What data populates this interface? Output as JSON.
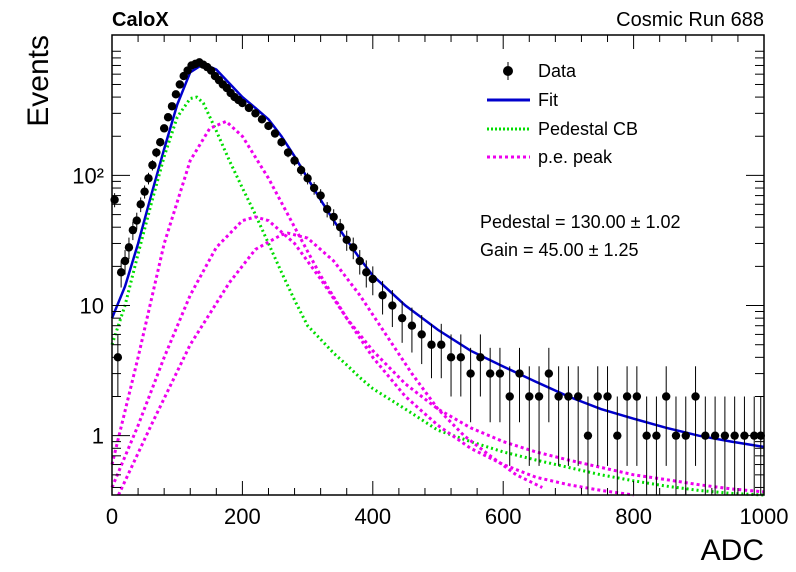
{
  "header": {
    "left_label": "CaloX",
    "right_label": "Cosmic Run 688"
  },
  "stats": {
    "pedestal": "Pedestal = 130.00 ± 1.02",
    "gain": "Gain = 45.00 ± 1.25"
  },
  "colors": {
    "data": "#000000",
    "fit": "#0000cc",
    "pedestal": "#00dd00",
    "pe_peak": "#ee00ee"
  },
  "chart_data": {
    "type": "scatter",
    "xlabel": "ADC",
    "ylabel": "Events",
    "xlim": [
      0,
      1000
    ],
    "ylim": [
      0.35,
      1200
    ],
    "yscale": "log",
    "grid": false,
    "legend_position": "top-right",
    "x_ticks": [
      0,
      200,
      400,
      600,
      800,
      1000
    ],
    "x_tick_labels": [
      "0",
      "200",
      "400",
      "600",
      "800",
      "1000"
    ],
    "y_ticks": [
      1,
      10,
      100
    ],
    "y_tick_labels": [
      "1",
      "10",
      "10²"
    ],
    "legend": [
      "Data",
      "Fit",
      "Pedestal CB",
      "p.e. peak"
    ],
    "series": [
      {
        "name": "Data",
        "style": "points-with-errors",
        "x": [
          4,
          9,
          14,
          20,
          26,
          32,
          38,
          44,
          50,
          56,
          62,
          68,
          74,
          80,
          86,
          92,
          98,
          104,
          110,
          116,
          122,
          128,
          134,
          140,
          146,
          152,
          158,
          164,
          170,
          176,
          182,
          188,
          194,
          200,
          210,
          220,
          230,
          240,
          250,
          260,
          270,
          280,
          290,
          300,
          310,
          320,
          330,
          340,
          350,
          360,
          370,
          380,
          390,
          400,
          415,
          430,
          445,
          460,
          475,
          490,
          505,
          520,
          535,
          550,
          565,
          580,
          595,
          610,
          625,
          640,
          655,
          670,
          685,
          700,
          715,
          730,
          745,
          760,
          775,
          790,
          805,
          820,
          835,
          850,
          865,
          880,
          895,
          910,
          925,
          940,
          955,
          970,
          985,
          995
        ],
        "y": [
          65,
          4,
          18,
          22,
          28,
          38,
          45,
          60,
          75,
          95,
          120,
          150,
          180,
          230,
          280,
          340,
          420,
          500,
          580,
          640,
          700,
          720,
          740,
          710,
          680,
          640,
          580,
          540,
          500,
          470,
          430,
          400,
          380,
          360,
          330,
          300,
          270,
          240,
          210,
          180,
          150,
          130,
          110,
          95,
          80,
          70,
          55,
          48,
          40,
          32,
          28,
          22,
          18,
          16,
          12,
          10,
          8,
          7,
          6,
          5,
          5,
          4,
          4,
          3,
          4,
          3,
          3,
          2,
          3,
          2,
          2,
          3,
          2,
          2,
          2,
          1,
          2,
          2,
          1,
          2,
          2,
          1,
          1,
          2,
          1,
          1,
          2,
          1,
          1,
          1,
          1,
          1,
          1,
          1
        ]
      },
      {
        "name": "Fit",
        "style": "solid",
        "x": [
          0,
          20,
          40,
          60,
          80,
          100,
          120,
          140,
          160,
          180,
          200,
          220,
          240,
          260,
          280,
          300,
          320,
          340,
          360,
          380,
          400,
          450,
          500,
          550,
          600,
          650,
          700,
          750,
          800,
          850,
          900,
          950,
          1000
        ],
        "y": [
          8,
          14,
          30,
          70,
          160,
          350,
          620,
          720,
          650,
          510,
          400,
          330,
          270,
          200,
          140,
          95,
          65,
          45,
          32,
          23,
          17,
          10,
          6.5,
          4.5,
          3.4,
          2.6,
          2.0,
          1.6,
          1.35,
          1.15,
          1.0,
          0.9,
          0.82
        ]
      },
      {
        "name": "Pedestal CB",
        "style": "dotted",
        "x": [
          0,
          20,
          40,
          60,
          80,
          100,
          120,
          130,
          140,
          160,
          180,
          200,
          220,
          240,
          260,
          280,
          300,
          320,
          340,
          360,
          380,
          400,
          450,
          500,
          550,
          600,
          650,
          700,
          750,
          800,
          850,
          900,
          950,
          1000
        ],
        "y": [
          5,
          10,
          25,
          60,
          140,
          280,
          390,
          400,
          360,
          220,
          130,
          80,
          50,
          30,
          18,
          11,
          7,
          5.5,
          4.3,
          3.5,
          2.8,
          2.3,
          1.6,
          1.1,
          0.9,
          0.75,
          0.65,
          0.57,
          0.5,
          0.45,
          0.41,
          0.38,
          0.36,
          0.34
        ]
      },
      {
        "name": "p.e. peak",
        "style": "dotted",
        "x": [
          0,
          40,
          80,
          120,
          150,
          175,
          200,
          240,
          280,
          320,
          360,
          400,
          450,
          500,
          550,
          600,
          650,
          700,
          750,
          800,
          850,
          900,
          950,
          1000
        ],
        "y": [
          0.6,
          4,
          30,
          130,
          230,
          260,
          200,
          95,
          40,
          17,
          8,
          4.5,
          2.5,
          1.6,
          1.15,
          0.9,
          0.75,
          0.65,
          0.57,
          0.5,
          0.46,
          0.42,
          0.39,
          0.37
        ]
      },
      {
        "name": "",
        "style": "dotted",
        "x": [
          0,
          40,
          80,
          120,
          160,
          200,
          220,
          240,
          280,
          320,
          360,
          400,
          450,
          500,
          550,
          600,
          650,
          700,
          750,
          800
        ],
        "y": [
          0.4,
          1.2,
          4,
          12,
          28,
          45,
          48,
          45,
          30,
          16,
          8,
          4,
          2,
          1.2,
          0.8,
          0.6,
          0.48,
          0.42,
          0.38,
          0.35
        ]
      },
      {
        "name": "",
        "style": "dotted",
        "x": [
          10,
          60,
          120,
          180,
          220,
          260,
          270,
          300,
          340,
          380,
          420,
          460,
          500,
          540,
          580,
          620,
          660
        ],
        "y": [
          0.35,
          1.2,
          5,
          15,
          27,
          35,
          36,
          33,
          22,
          12,
          6,
          3,
          1.6,
          1.0,
          0.7,
          0.5,
          0.4
        ]
      }
    ]
  }
}
